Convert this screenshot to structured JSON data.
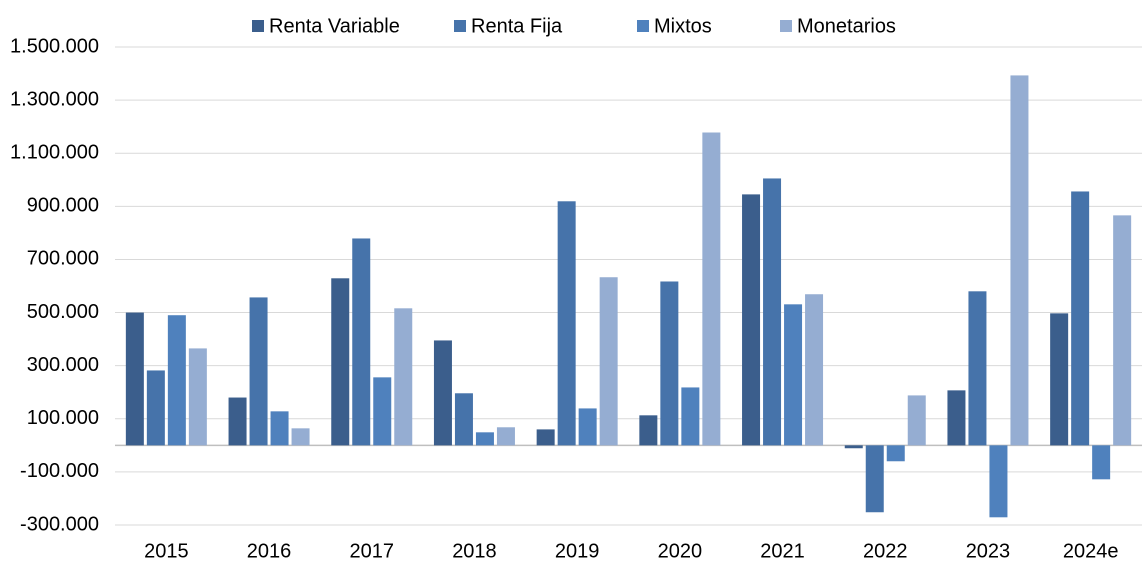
{
  "chart_data": {
    "type": "bar",
    "categories": [
      "2015",
      "2016",
      "2017",
      "2018",
      "2019",
      "2020",
      "2021",
      "2022",
      "2023",
      "2024e"
    ],
    "series": [
      {
        "name": "Renta Variable",
        "color": "#3b5e8c",
        "values": [
          500000,
          180000,
          629000,
          395000,
          60000,
          113000,
          945000,
          -11000,
          207000,
          497000
        ]
      },
      {
        "name": "Renta Fija",
        "color": "#4673aa",
        "values": [
          282000,
          557000,
          779000,
          196000,
          919000,
          617000,
          1005000,
          -252000,
          580000,
          956000
        ]
      },
      {
        "name": "Mixtos",
        "color": "#4f81bd",
        "values": [
          490000,
          128000,
          256000,
          49000,
          139000,
          218000,
          531000,
          -60000,
          -271000,
          -128000
        ]
      },
      {
        "name": "Monetarios",
        "color": "#95add2",
        "values": [
          365000,
          64000,
          516000,
          68000,
          633000,
          1178000,
          569000,
          188000,
          1393000,
          866000
        ]
      }
    ],
    "ylim": [
      -300000,
      1500000
    ],
    "yticks": [
      {
        "value": -300000,
        "label": "-300.000"
      },
      {
        "value": -100000,
        "label": "-100.000"
      },
      {
        "value": 100000,
        "label": "100.000"
      },
      {
        "value": 300000,
        "label": "300.000"
      },
      {
        "value": 500000,
        "label": "500.000"
      },
      {
        "value": 700000,
        "label": "700.000"
      },
      {
        "value": 900000,
        "label": "900.000"
      },
      {
        "value": 1100000,
        "label": "1.100.000"
      },
      {
        "value": 1300000,
        "label": "1.300.000"
      },
      {
        "value": 1500000,
        "label": "1.500.000"
      }
    ],
    "grid": true,
    "legend": "top"
  }
}
